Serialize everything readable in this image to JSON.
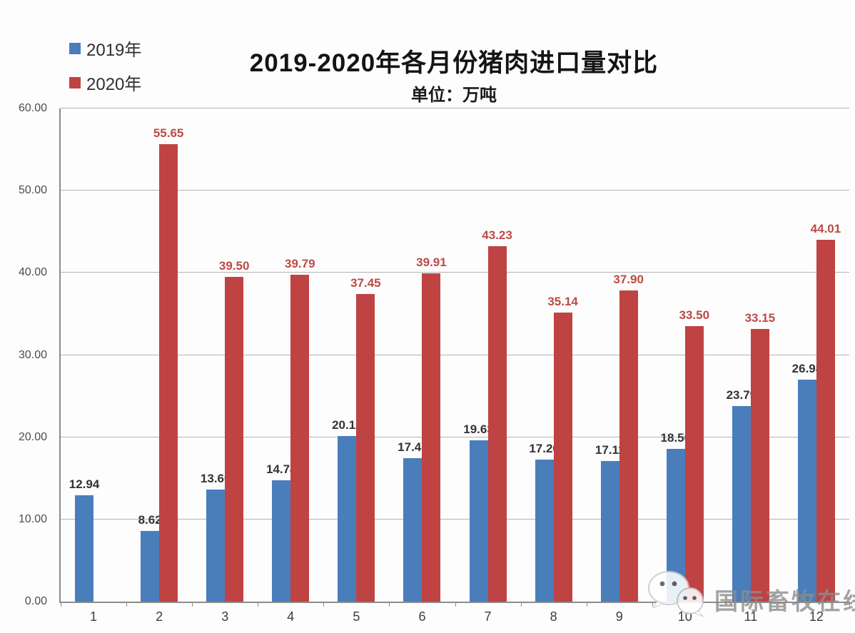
{
  "chart_data": {
    "type": "bar",
    "title": "2019-2020年各月份猪肉进口量对比",
    "subtitle": "单位：万吨",
    "categories": [
      "1",
      "2",
      "3",
      "4",
      "5",
      "6",
      "7",
      "8",
      "9",
      "10",
      "11",
      "12"
    ],
    "series": [
      {
        "name": "2019年",
        "color": "#4a7ebb",
        "label_color": "#333333",
        "values": [
          12.94,
          8.62,
          13.6,
          14.74,
          20.12,
          17.47,
          19.63,
          17.26,
          17.11,
          18.56,
          23.79,
          26.98
        ],
        "labels": [
          "12.94",
          "8.62",
          "13.60",
          "14.74",
          "20.12",
          "17.47",
          "19.63",
          "17.26",
          "17.11",
          "18.56",
          "23.79",
          "26.98"
        ]
      },
      {
        "name": "2020年",
        "color": "#bf4343",
        "label_color": "#bc4a45",
        "values": [
          null,
          55.65,
          39.5,
          39.79,
          37.45,
          39.91,
          43.23,
          35.14,
          37.9,
          33.5,
          33.15,
          44.01
        ],
        "labels": [
          "",
          "55.65",
          "39.50",
          "39.79",
          "37.45",
          "39.91",
          "43.23",
          "35.14",
          "37.90",
          "33.50",
          "33.15",
          "44.01"
        ]
      }
    ],
    "ylim": [
      0,
      60
    ],
    "ytick_step": 10,
    "ytick_labels": [
      "0.00",
      "10.00",
      "20.00",
      "30.00",
      "40.00",
      "50.00",
      "60.00"
    ],
    "grid": true,
    "legend_position": "top-left"
  },
  "watermark": {
    "text": "国际畜牧在线",
    "icon": "wechat-icon"
  }
}
